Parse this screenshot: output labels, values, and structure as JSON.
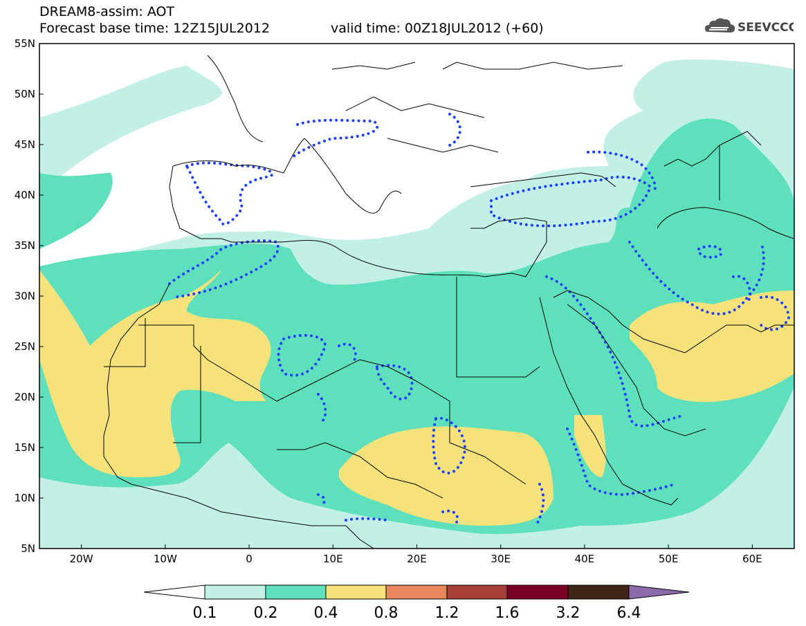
{
  "header": {
    "title": "DREAM8-assim: AOT",
    "base_time": "Forecast base time: 12Z15JUL2012",
    "valid_time": "valid time: 00Z18JUL2012 (+60)",
    "logo": "SEEVCCC"
  },
  "map": {
    "lat_ticks": [
      "55N",
      "50N",
      "45N",
      "40N",
      "35N",
      "30N",
      "25N",
      "20N",
      "15N",
      "10N",
      "5N"
    ],
    "lon_ticks": [
      "20W",
      "10W",
      "0",
      "10E",
      "20E",
      "30E",
      "40E",
      "50E",
      "60E"
    ],
    "lon_range": [
      -25,
      65
    ],
    "lat_range": [
      5,
      55
    ]
  },
  "colorbar": {
    "labels": [
      "0.1",
      "0.2",
      "0.4",
      "0.8",
      "1.2",
      "1.6",
      "3.2",
      "6.4"
    ],
    "colors": [
      "#ffffff",
      "#c2f0e6",
      "#5ee0bc",
      "#f5e27a",
      "#e6885a",
      "#a8403a",
      "#7a0025",
      "#3d2415",
      "#8a6aa8"
    ]
  },
  "colors": {
    "contour_dots": "#1e40ff",
    "level_0_1": "#c2f0e6",
    "level_0_2": "#5ee0bc",
    "level_0_4": "#f5e27a"
  }
}
